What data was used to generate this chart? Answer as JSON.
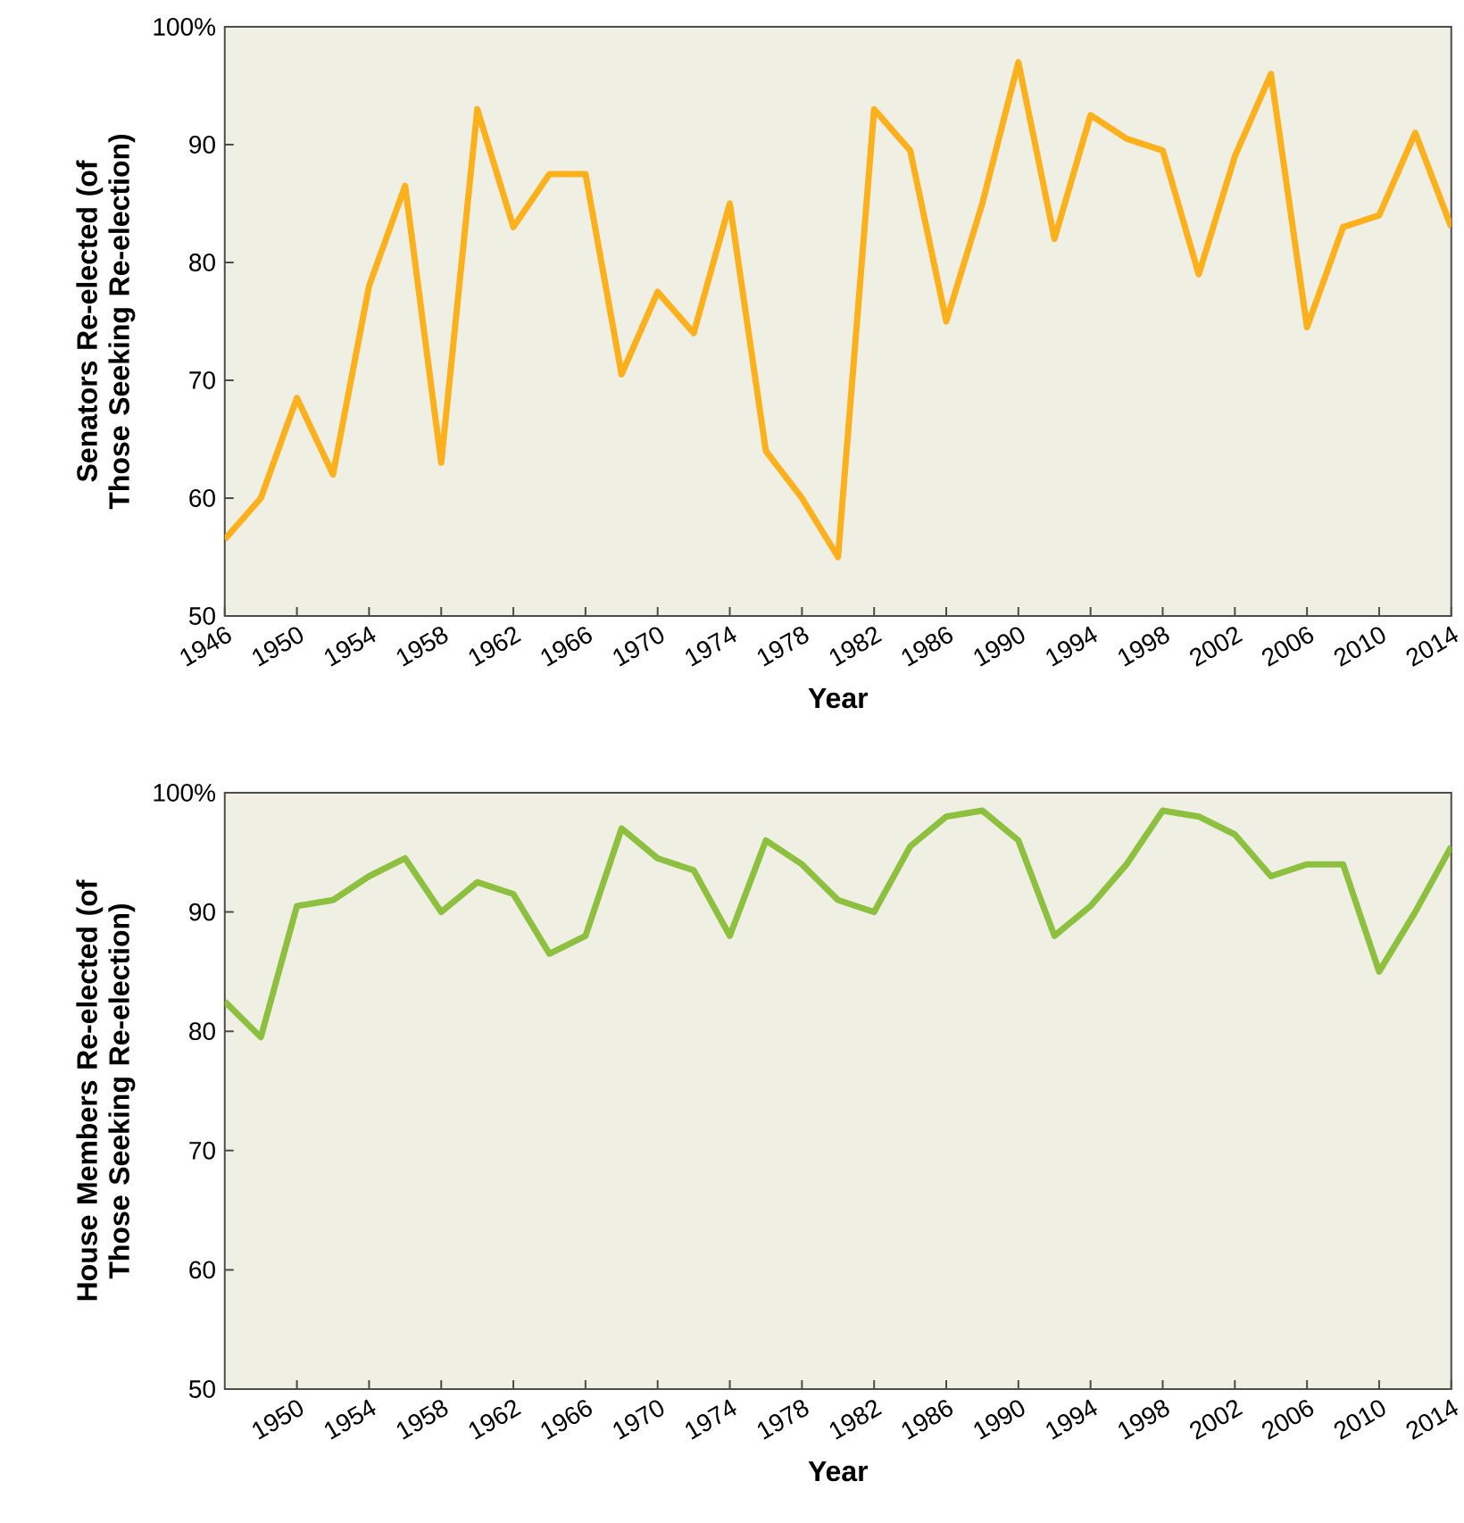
{
  "chart_data": [
    {
      "type": "line",
      "ylabel": "Senators Re-elected (of Those Seeking Re-election)",
      "xlabel": "Year",
      "x": [
        1946,
        1948,
        1950,
        1952,
        1954,
        1956,
        1958,
        1960,
        1962,
        1964,
        1966,
        1968,
        1970,
        1972,
        1974,
        1976,
        1978,
        1980,
        1982,
        1984,
        1986,
        1988,
        1990,
        1992,
        1994,
        1996,
        1998,
        2000,
        2002,
        2004,
        2006,
        2008,
        2010,
        2012,
        2014
      ],
      "series": [
        {
          "color": "#fbb01c",
          "values": [
            56.5,
            60,
            68.5,
            62,
            78,
            86.5,
            63,
            93,
            83,
            87.5,
            87.5,
            70.5,
            77.5,
            74,
            85,
            64,
            60,
            55,
            93,
            89.5,
            75,
            85,
            97,
            82,
            92.5,
            90.5,
            89.5,
            79,
            89,
            96,
            74.5,
            83,
            84,
            91,
            83
          ]
        }
      ],
      "xlim": [
        1946,
        2014
      ],
      "xticks": [
        1946,
        1950,
        1954,
        1958,
        1962,
        1966,
        1970,
        1974,
        1978,
        1982,
        1986,
        1990,
        1994,
        1998,
        2002,
        2006,
        2010,
        2014
      ],
      "ylim": [
        50,
        100
      ],
      "yticks": [
        50,
        60,
        70,
        80,
        90,
        {
          "value": 100,
          "label": "100%"
        }
      ],
      "grid": false,
      "marker": "none",
      "line_style": "solid"
    },
    {
      "type": "line",
      "ylabel": "House Members Re-elected (of Those Seeking Re-election)",
      "xlabel": "Year",
      "x": [
        1946,
        1948,
        1950,
        1952,
        1954,
        1956,
        1958,
        1960,
        1962,
        1964,
        1966,
        1968,
        1970,
        1972,
        1974,
        1976,
        1978,
        1980,
        1982,
        1984,
        1986,
        1988,
        1990,
        1992,
        1994,
        1996,
        1998,
        2000,
        2002,
        2004,
        2006,
        2008,
        2010,
        2012,
        2014
      ],
      "series": [
        {
          "color": "#8dc03f",
          "values": [
            82.5,
            79.5,
            90.5,
            91,
            93,
            94.5,
            90,
            92.5,
            91.5,
            86.5,
            88,
            97,
            94.5,
            93.5,
            88,
            96,
            94,
            91,
            90,
            95.5,
            98,
            98.5,
            96,
            88,
            90.5,
            94,
            98.5,
            98,
            96.5,
            93,
            94,
            94,
            85,
            90,
            95.5
          ]
        }
      ],
      "xlim": [
        1946,
        2014
      ],
      "xticks": [
        1950,
        1954,
        1958,
        1962,
        1966,
        1970,
        1974,
        1978,
        1982,
        1986,
        1990,
        1994,
        1998,
        2002,
        2006,
        2010,
        2014
      ],
      "ylim": [
        50,
        100
      ],
      "yticks": [
        50,
        60,
        70,
        80,
        90,
        {
          "value": 100,
          "label": "100%"
        }
      ],
      "grid": false,
      "marker": "none",
      "line_style": "solid"
    }
  ]
}
